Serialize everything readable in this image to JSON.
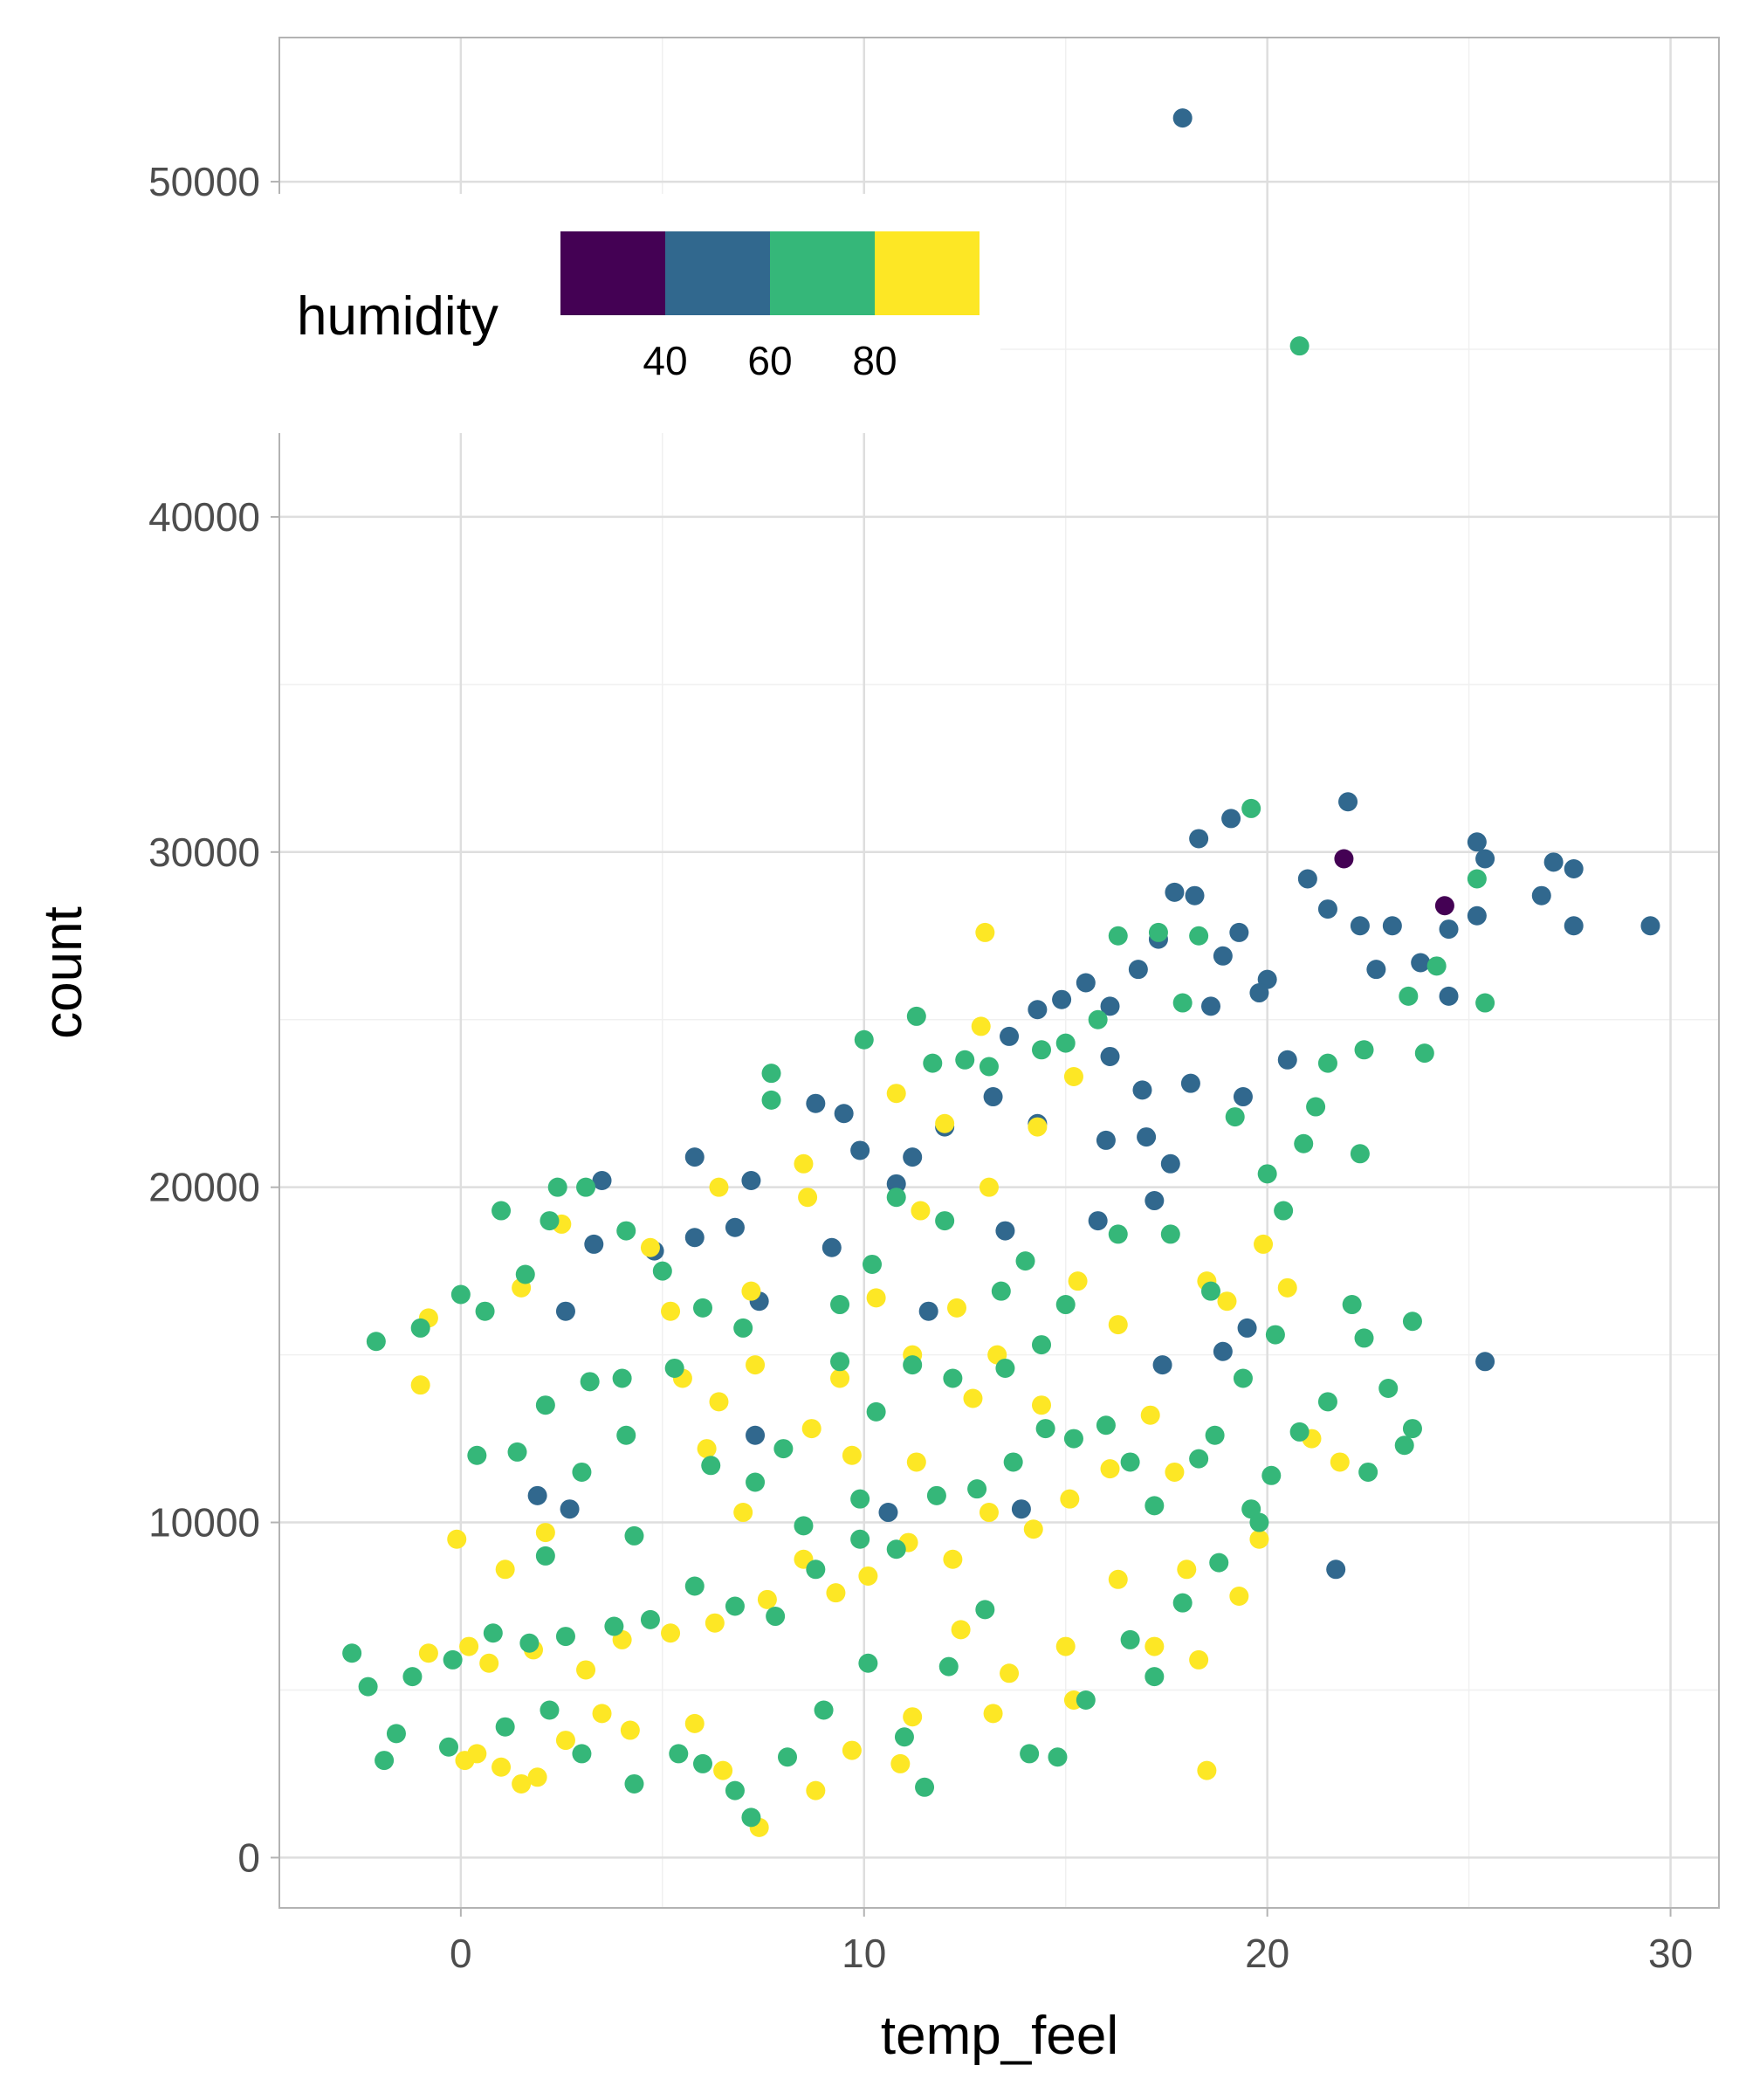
{
  "chart_data": {
    "type": "scatter",
    "xlabel": "temp_feel",
    "ylabel": "count",
    "xlim": [
      -4.5,
      31.2
    ],
    "ylim": [
      -1500,
      54300
    ],
    "x_ticks": [
      0,
      10,
      20,
      30
    ],
    "y_ticks": [
      0,
      10000,
      20000,
      30000,
      40000,
      50000
    ],
    "x_tick_labels": [
      "0",
      "10",
      "20",
      "30"
    ],
    "y_tick_labels": [
      "0",
      "10000",
      "20000",
      "30000",
      "40000",
      "50000"
    ],
    "grid": true,
    "legend": {
      "title": "humidity",
      "placement": "top-left inside",
      "type": "binned colorbar",
      "breaks": [
        40,
        60,
        80
      ],
      "break_labels": [
        "40",
        "60",
        "80"
      ],
      "colors": [
        "#440154",
        "#31688E",
        "#35B779",
        "#FDE725"
      ]
    },
    "points": [
      [
        17.9,
        51900,
        50
      ],
      [
        20.8,
        45100,
        70
      ],
      [
        21.9,
        29800,
        35
      ],
      [
        24.4,
        28400,
        35
      ],
      [
        29.5,
        27800,
        50
      ],
      [
        27.6,
        29500,
        50
      ],
      [
        27.1,
        29700,
        50
      ],
      [
        26.8,
        28700,
        50
      ],
      [
        27.6,
        27800,
        50
      ],
      [
        25.4,
        29800,
        50
      ],
      [
        25.2,
        30300,
        50
      ],
      [
        25.2,
        28100,
        50
      ],
      [
        24.5,
        27700,
        50
      ],
      [
        24.5,
        25700,
        50
      ],
      [
        25.4,
        25500,
        70
      ],
      [
        25.2,
        29200,
        70
      ],
      [
        25.4,
        14800,
        50
      ],
      [
        21.7,
        8600,
        50
      ],
      [
        22.0,
        31500,
        50
      ],
      [
        19.6,
        31300,
        70
      ],
      [
        19.1,
        31000,
        50
      ],
      [
        18.3,
        30400,
        50
      ],
      [
        17.7,
        28800,
        50
      ],
      [
        18.2,
        28700,
        50
      ],
      [
        18.5,
        2600,
        90
      ],
      [
        21.0,
        29200,
        50
      ],
      [
        21.5,
        28300,
        50
      ],
      [
        22.3,
        27800,
        50
      ],
      [
        23.1,
        27800,
        50
      ],
      [
        22.7,
        26500,
        50
      ],
      [
        23.8,
        26700,
        50
      ],
      [
        24.2,
        26600,
        70
      ],
      [
        23.5,
        25700,
        70
      ],
      [
        23.9,
        24000,
        70
      ],
      [
        22.4,
        24100,
        70
      ],
      [
        21.5,
        23700,
        70
      ],
      [
        22.3,
        21000,
        70
      ],
      [
        21.2,
        22400,
        70
      ],
      [
        20.5,
        23800,
        50
      ],
      [
        20.0,
        26200,
        50
      ],
      [
        19.8,
        25800,
        50
      ],
      [
        19.3,
        27600,
        50
      ],
      [
        18.9,
        26900,
        50
      ],
      [
        18.6,
        25400,
        50
      ],
      [
        17.3,
        27400,
        50
      ],
      [
        16.8,
        26500,
        50
      ],
      [
        16.1,
        25400,
        50
      ],
      [
        15.5,
        26100,
        50
      ],
      [
        14.9,
        25600,
        50
      ],
      [
        14.3,
        25300,
        50
      ],
      [
        13.6,
        24500,
        50
      ],
      [
        17.3,
        27600,
        70
      ],
      [
        16.3,
        27500,
        70
      ],
      [
        18.3,
        27500,
        70
      ],
      [
        17.9,
        25500,
        70
      ],
      [
        15.8,
        25000,
        70
      ],
      [
        15.0,
        24300,
        70
      ],
      [
        14.4,
        24100,
        70
      ],
      [
        13.1,
        23600,
        70
      ],
      [
        12.5,
        23800,
        70
      ],
      [
        11.3,
        25100,
        70
      ],
      [
        10.0,
        24400,
        70
      ],
      [
        11.7,
        23700,
        70
      ],
      [
        16.1,
        23900,
        50
      ],
      [
        16.9,
        22900,
        50
      ],
      [
        18.1,
        23100,
        50
      ],
      [
        19.4,
        22700,
        50
      ],
      [
        17.6,
        20700,
        50
      ],
      [
        17.0,
        21500,
        50
      ],
      [
        16.0,
        21400,
        50
      ],
      [
        14.3,
        21900,
        50
      ],
      [
        13.2,
        22700,
        50
      ],
      [
        12.0,
        21800,
        50
      ],
      [
        11.2,
        20900,
        50
      ],
      [
        10.8,
        20100,
        50
      ],
      [
        9.5,
        22200,
        50
      ],
      [
        8.8,
        22500,
        50
      ],
      [
        9.9,
        21100,
        50
      ],
      [
        7.2,
        20200,
        50
      ],
      [
        6.8,
        18800,
        50
      ],
      [
        5.8,
        20900,
        50
      ],
      [
        5.8,
        18500,
        50
      ],
      [
        4.8,
        18100,
        50
      ],
      [
        3.5,
        20200,
        50
      ],
      [
        3.3,
        18300,
        50
      ],
      [
        2.6,
        16300,
        50
      ],
      [
        7.4,
        16600,
        50
      ],
      [
        9.2,
        18200,
        50
      ],
      [
        11.6,
        16300,
        50
      ],
      [
        13.5,
        18700,
        50
      ],
      [
        15.8,
        19000,
        50
      ],
      [
        17.2,
        19600,
        50
      ],
      [
        18.9,
        15100,
        50
      ],
      [
        19.5,
        15800,
        50
      ],
      [
        17.4,
        14700,
        50
      ],
      [
        1.9,
        10800,
        50
      ],
      [
        2.7,
        10400,
        50
      ],
      [
        7.3,
        12600,
        50
      ],
      [
        13.9,
        10400,
        50
      ],
      [
        10.6,
        10300,
        50
      ],
      [
        13.0,
        27600,
        90
      ],
      [
        12.9,
        24800,
        90
      ],
      [
        15.2,
        23300,
        90
      ],
      [
        10.8,
        22800,
        90
      ],
      [
        12.0,
        21900,
        90
      ],
      [
        14.3,
        21800,
        90
      ],
      [
        8.5,
        20700,
        90
      ],
      [
        13.1,
        20000,
        90
      ],
      [
        11.4,
        19300,
        90
      ],
      [
        6.4,
        20000,
        90
      ],
      [
        8.6,
        19700,
        90
      ],
      [
        4.7,
        18200,
        90
      ],
      [
        2.5,
        18900,
        90
      ],
      [
        1.5,
        17000,
        90
      ],
      [
        -0.8,
        16100,
        90
      ],
      [
        -1.0,
        14100,
        90
      ],
      [
        10.3,
        16700,
        90
      ],
      [
        12.3,
        16400,
        90
      ],
      [
        7.2,
        16900,
        90
      ],
      [
        5.2,
        16300,
        90
      ],
      [
        9.4,
        14300,
        90
      ],
      [
        7.3,
        14700,
        90
      ],
      [
        6.4,
        13600,
        90
      ],
      [
        11.2,
        15000,
        90
      ],
      [
        13.3,
        15000,
        90
      ],
      [
        14.4,
        13500,
        90
      ],
      [
        15.3,
        17200,
        90
      ],
      [
        16.3,
        15900,
        90
      ],
      [
        18.5,
        17200,
        90
      ],
      [
        19.0,
        16600,
        90
      ],
      [
        19.9,
        18300,
        90
      ],
      [
        20.5,
        17000,
        90
      ],
      [
        21.1,
        12500,
        90
      ],
      [
        21.8,
        11800,
        90
      ],
      [
        19.8,
        9500,
        90
      ],
      [
        19.3,
        7800,
        90
      ],
      [
        18.0,
        8600,
        90
      ],
      [
        18.3,
        5900,
        90
      ],
      [
        17.2,
        6300,
        90
      ],
      [
        16.3,
        8300,
        90
      ],
      [
        15.0,
        6300,
        90
      ],
      [
        15.2,
        4700,
        90
      ],
      [
        13.6,
        5500,
        90
      ],
      [
        13.2,
        4300,
        90
      ],
      [
        12.4,
        6800,
        90
      ],
      [
        11.2,
        4200,
        90
      ],
      [
        10.9,
        2800,
        90
      ],
      [
        9.7,
        3200,
        90
      ],
      [
        8.8,
        2000,
        90
      ],
      [
        7.4,
        900,
        90
      ],
      [
        6.5,
        2600,
        90
      ],
      [
        5.8,
        4000,
        90
      ],
      [
        4.2,
        3800,
        90
      ],
      [
        3.5,
        4300,
        90
      ],
      [
        2.6,
        3500,
        90
      ],
      [
        1.9,
        2400,
        90
      ],
      [
        1.5,
        2200,
        90
      ],
      [
        1.0,
        2700,
        90
      ],
      [
        0.4,
        3100,
        90
      ],
      [
        0.1,
        2900,
        90
      ],
      [
        -0.1,
        9500,
        90
      ],
      [
        1.1,
        8600,
        90
      ],
      [
        2.1,
        9700,
        90
      ],
      [
        0.7,
        5800,
        90
      ],
      [
        -0.8,
        6100,
        90
      ],
      [
        0.2,
        6300,
        90
      ],
      [
        1.8,
        6200,
        90
      ],
      [
        3.1,
        5600,
        90
      ],
      [
        4.0,
        6500,
        90
      ],
      [
        5.2,
        6700,
        90
      ],
      [
        6.3,
        7000,
        90
      ],
      [
        7.6,
        7700,
        90
      ],
      [
        8.5,
        8900,
        90
      ],
      [
        9.3,
        7900,
        90
      ],
      [
        10.1,
        8400,
        90
      ],
      [
        11.1,
        9400,
        90
      ],
      [
        12.2,
        8900,
        90
      ],
      [
        13.1,
        10300,
        90
      ],
      [
        14.2,
        9800,
        90
      ],
      [
        15.1,
        10700,
        90
      ],
      [
        16.1,
        11600,
        90
      ],
      [
        17.1,
        13200,
        90
      ],
      [
        17.7,
        11500,
        90
      ],
      [
        12.7,
        13700,
        90
      ],
      [
        9.7,
        12000,
        90
      ],
      [
        11.3,
        11800,
        90
      ],
      [
        7.0,
        10300,
        90
      ],
      [
        6.1,
        12200,
        90
      ],
      [
        5.5,
        14300,
        90
      ],
      [
        8.7,
        12800,
        90
      ],
      [
        -2.1,
        15400,
        70
      ],
      [
        -1.0,
        15800,
        70
      ],
      [
        0.0,
        16800,
        70
      ],
      [
        0.6,
        16300,
        70
      ],
      [
        1.6,
        17400,
        70
      ],
      [
        2.2,
        19000,
        70
      ],
      [
        2.4,
        20000,
        70
      ],
      [
        3.1,
        20000,
        70
      ],
      [
        1.0,
        19300,
        70
      ],
      [
        4.1,
        18700,
        70
      ],
      [
        5.0,
        17500,
        70
      ],
      [
        6.0,
        16400,
        70
      ],
      [
        7.0,
        15800,
        70
      ],
      [
        7.7,
        23400,
        70
      ],
      [
        7.7,
        22600,
        70
      ],
      [
        9.4,
        16500,
        70
      ],
      [
        10.2,
        17700,
        70
      ],
      [
        10.8,
        19700,
        70
      ],
      [
        12.0,
        19000,
        70
      ],
      [
        13.4,
        16900,
        70
      ],
      [
        14.0,
        17800,
        70
      ],
      [
        15.0,
        16500,
        70
      ],
      [
        16.3,
        18600,
        70
      ],
      [
        17.6,
        18600,
        70
      ],
      [
        18.6,
        16900,
        70
      ],
      [
        19.4,
        14300,
        70
      ],
      [
        20.2,
        15600,
        70
      ],
      [
        20.4,
        19300,
        70
      ],
      [
        20.0,
        20400,
        70
      ],
      [
        19.2,
        22100,
        70
      ],
      [
        20.9,
        21300,
        70
      ],
      [
        22.1,
        16500,
        70
      ],
      [
        22.4,
        15500,
        70
      ],
      [
        23.6,
        16000,
        70
      ],
      [
        23.0,
        14000,
        70
      ],
      [
        23.6,
        12800,
        70
      ],
      [
        23.4,
        12300,
        70
      ],
      [
        22.5,
        11500,
        70
      ],
      [
        21.5,
        13600,
        70
      ],
      [
        20.8,
        12700,
        70
      ],
      [
        20.1,
        11400,
        70
      ],
      [
        19.6,
        10400,
        70
      ],
      [
        18.7,
        12600,
        70
      ],
      [
        18.3,
        11900,
        70
      ],
      [
        17.2,
        10500,
        70
      ],
      [
        16.6,
        11800,
        70
      ],
      [
        16.0,
        12900,
        70
      ],
      [
        15.2,
        12500,
        70
      ],
      [
        14.5,
        12800,
        70
      ],
      [
        13.7,
        11800,
        70
      ],
      [
        12.8,
        11000,
        70
      ],
      [
        11.8,
        10800,
        70
      ],
      [
        10.8,
        9200,
        70
      ],
      [
        9.9,
        9500,
        70
      ],
      [
        8.8,
        8600,
        70
      ],
      [
        7.8,
        7200,
        70
      ],
      [
        6.8,
        7500,
        70
      ],
      [
        5.8,
        8100,
        70
      ],
      [
        4.7,
        7100,
        70
      ],
      [
        3.8,
        6900,
        70
      ],
      [
        2.6,
        6600,
        70
      ],
      [
        1.7,
        6400,
        70
      ],
      [
        0.8,
        6700,
        70
      ],
      [
        -0.2,
        5900,
        70
      ],
      [
        -1.2,
        5400,
        70
      ],
      [
        -2.3,
        5100,
        70
      ],
      [
        -2.7,
        6100,
        70
      ],
      [
        -1.6,
        3700,
        70
      ],
      [
        -1.9,
        2900,
        70
      ],
      [
        -0.3,
        3300,
        70
      ],
      [
        1.1,
        3900,
        70
      ],
      [
        2.2,
        4400,
        70
      ],
      [
        3.0,
        3100,
        70
      ],
      [
        4.3,
        2200,
        70
      ],
      [
        5.4,
        3100,
        70
      ],
      [
        6.0,
        2800,
        70
      ],
      [
        6.8,
        2000,
        70
      ],
      [
        7.2,
        1200,
        70
      ],
      [
        8.1,
        3000,
        70
      ],
      [
        9.0,
        4400,
        70
      ],
      [
        10.1,
        5800,
        70
      ],
      [
        11.0,
        3600,
        70
      ],
      [
        11.5,
        2100,
        70
      ],
      [
        12.1,
        5700,
        70
      ],
      [
        13.0,
        7400,
        70
      ],
      [
        14.1,
        3100,
        70
      ],
      [
        14.8,
        3000,
        70
      ],
      [
        15.5,
        4700,
        70
      ],
      [
        16.6,
        6500,
        70
      ],
      [
        17.2,
        5400,
        70
      ],
      [
        17.9,
        7600,
        70
      ],
      [
        18.8,
        8800,
        70
      ],
      [
        19.8,
        10000,
        70
      ],
      [
        2.1,
        13500,
        70
      ],
      [
        1.4,
        12100,
        70
      ],
      [
        0.4,
        12000,
        70
      ],
      [
        3.0,
        11500,
        70
      ],
      [
        4.1,
        12600,
        70
      ],
      [
        5.3,
        14600,
        70
      ],
      [
        4.0,
        14300,
        70
      ],
      [
        3.2,
        14200,
        70
      ],
      [
        6.2,
        11700,
        70
      ],
      [
        7.3,
        11200,
        70
      ],
      [
        8.0,
        12200,
        70
      ],
      [
        10.3,
        13300,
        70
      ],
      [
        9.4,
        14800,
        70
      ],
      [
        11.2,
        14700,
        70
      ],
      [
        12.2,
        14300,
        70
      ],
      [
        13.5,
        14600,
        70
      ],
      [
        14.4,
        15300,
        70
      ],
      [
        4.3,
        9600,
        70
      ],
      [
        2.1,
        9000,
        70
      ],
      [
        8.5,
        9900,
        70
      ],
      [
        9.9,
        10700,
        70
      ]
    ]
  }
}
